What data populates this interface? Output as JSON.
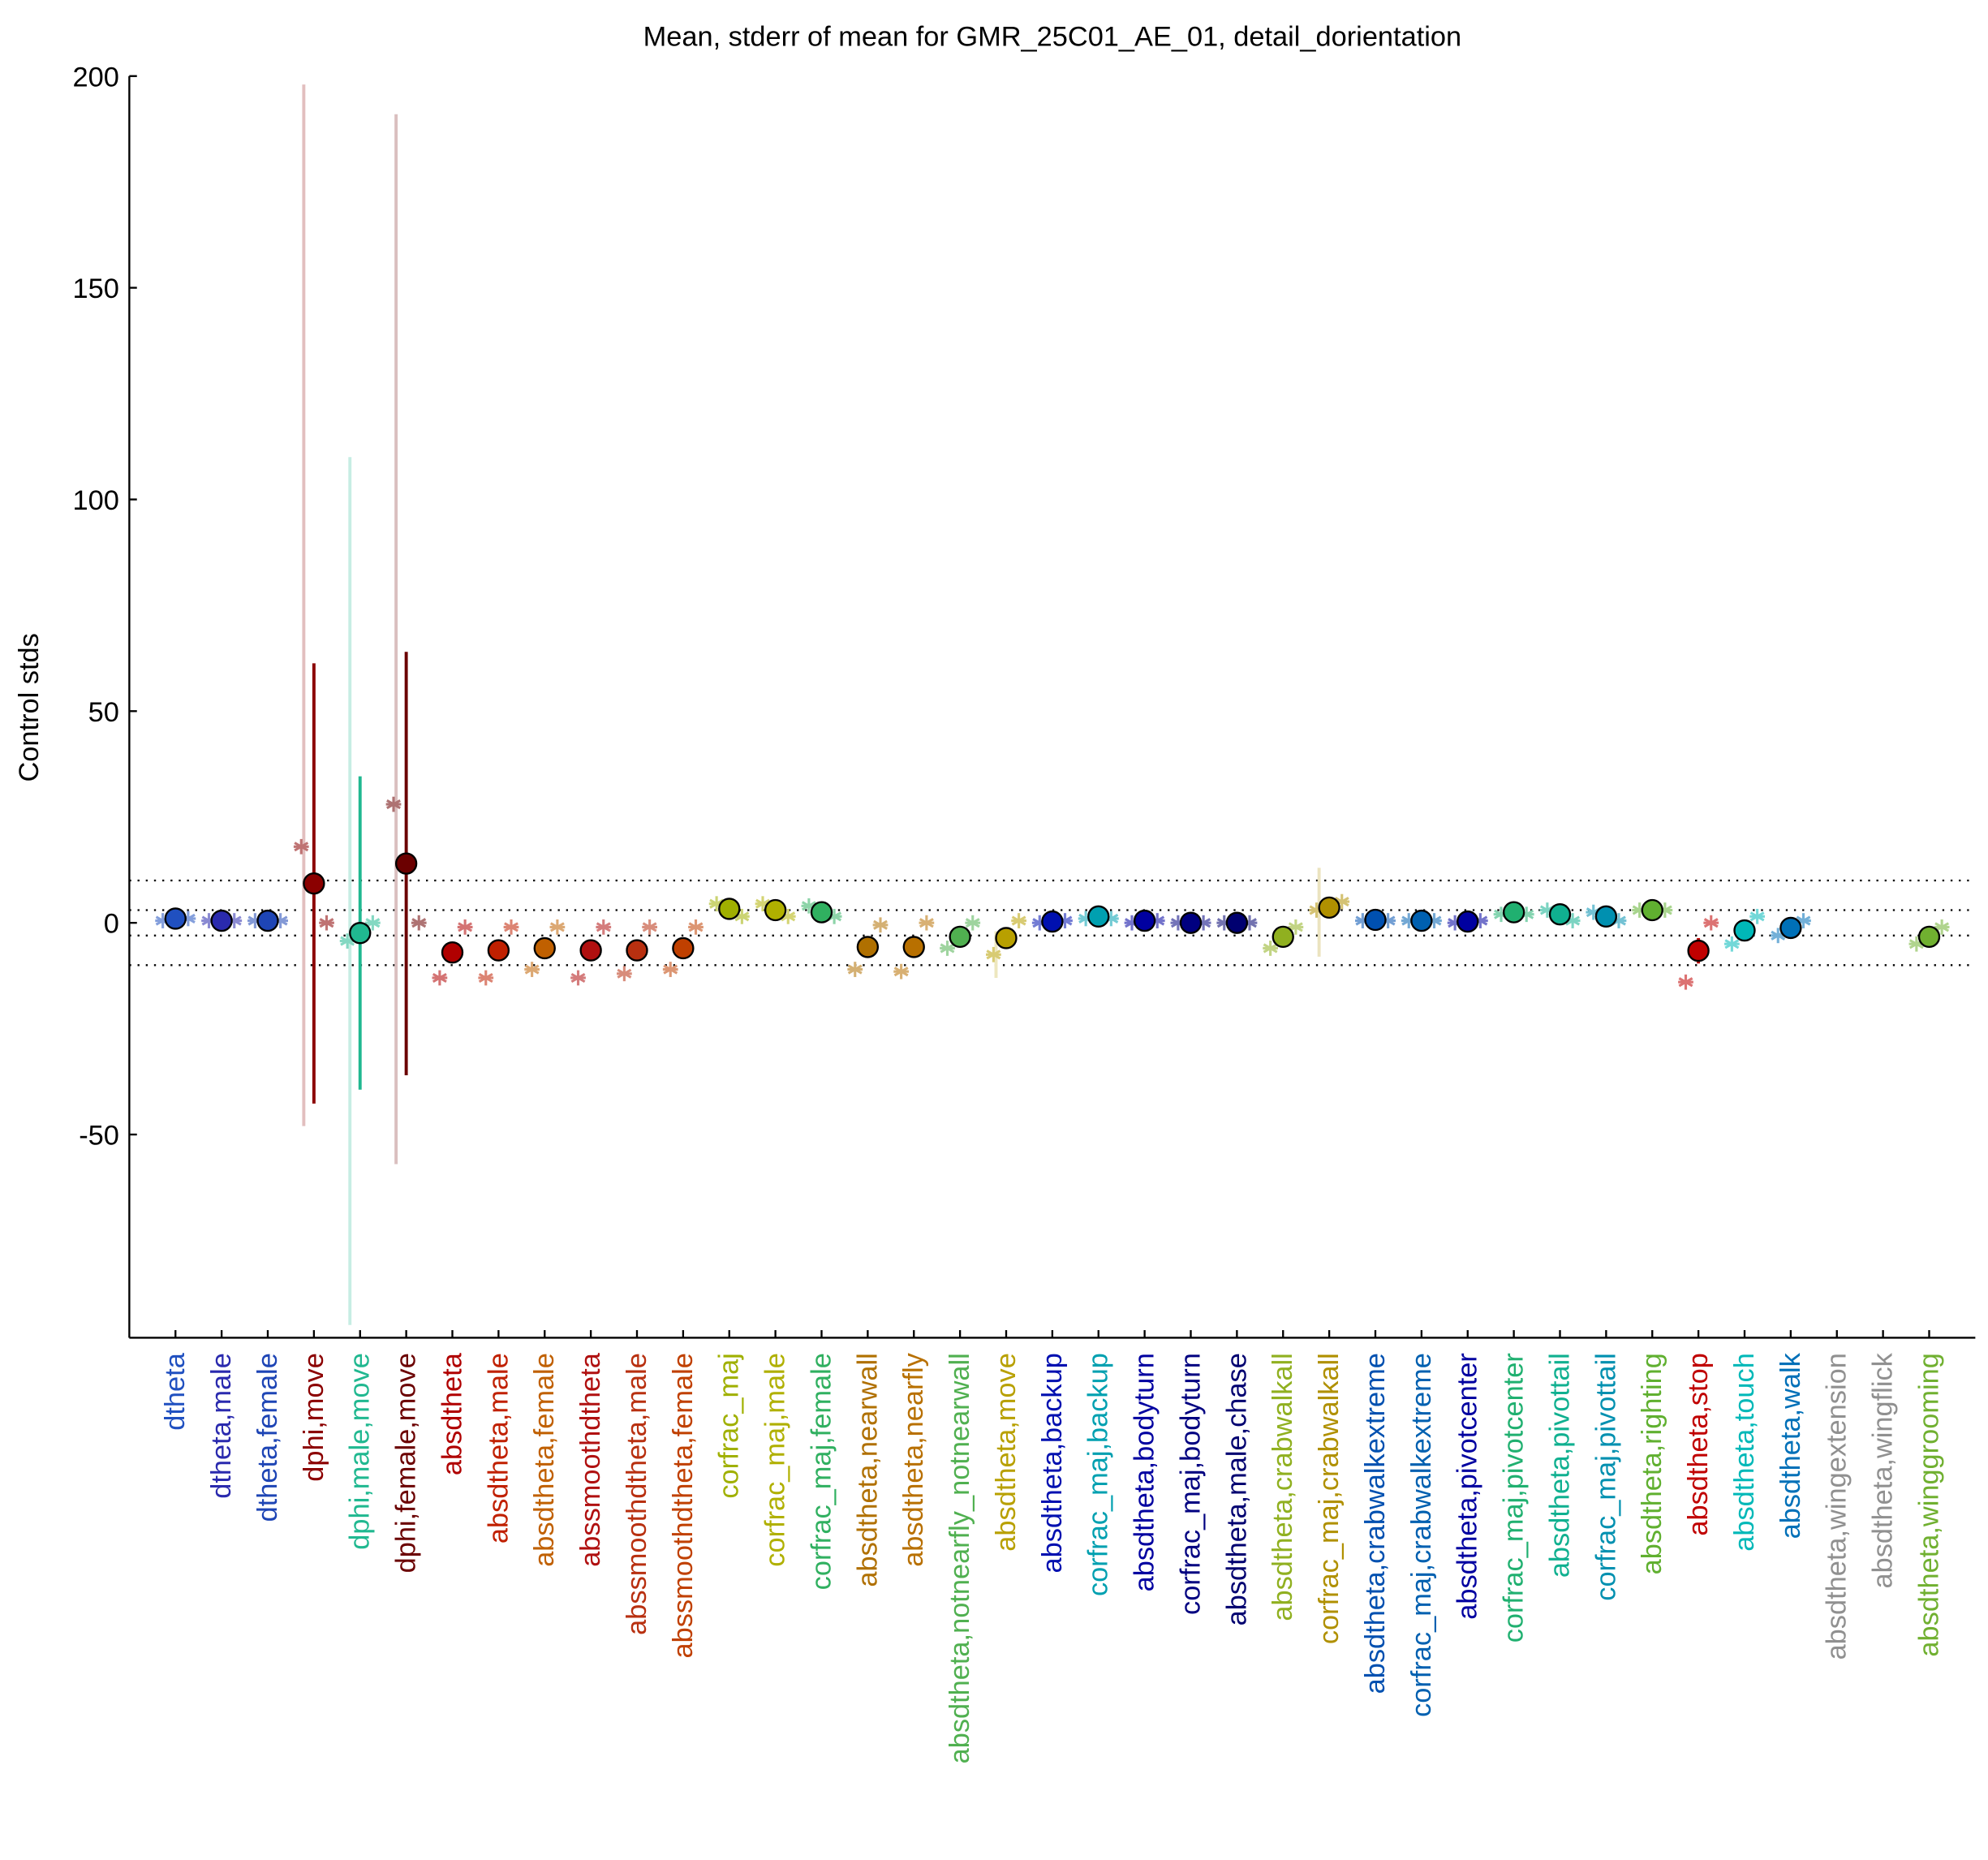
{
  "chart_data": {
    "type": "errorpoint",
    "title": "Mean, stderr of mean for GMR_25C01_AE_01, detail_dorientation",
    "ylabel": "Control stds",
    "categories": [
      "dtheta",
      "dtheta,male",
      "dtheta,female",
      "dphi,move",
      "dphi,male,move",
      "dphi,female,move",
      "absdtheta",
      "absdtheta,male",
      "absdtheta,female",
      "abssmoothdtheta",
      "abssmoothdtheta,male",
      "abssmoothdtheta,female",
      "corfrac_maj",
      "corfrac_maj,male",
      "corfrac_maj,female",
      "absdtheta,nearwall",
      "absdtheta,nearfly",
      "absdtheta,notnearfly_notnearwall",
      "absdtheta,move",
      "absdtheta,backup",
      "corfrac_maj,backup",
      "absdtheta,bodyturn",
      "corfrac_maj,bodyturn",
      "absdtheta,male,chase",
      "absdtheta,crabwalkall",
      "corfrac_maj,crabwalkall",
      "absdtheta,crabwalkextreme",
      "corfrac_maj,crabwalkextreme",
      "absdtheta,pivotcenter",
      "corfrac_maj,pivotcenter",
      "absdtheta,pivottail",
      "corfrac_maj,pivottail",
      "absdtheta,righting",
      "absdtheta,stop",
      "absdtheta,touch",
      "absdtheta,walk",
      "absdtheta,wingextension",
      "absdtheta,wingflick",
      "absdtheta,winggrooming"
    ],
    "colors": [
      "#2050c0",
      "#2a2aae",
      "#1e45b5",
      "#8b0000",
      "#20b890",
      "#6b0000",
      "#b00000",
      "#c02000",
      "#c06000",
      "#b01010",
      "#b83010",
      "#c04000",
      "#a0b000",
      "#b0b000",
      "#30b060",
      "#b07000",
      "#b87000",
      "#50b050",
      "#b8a000",
      "#0010b0",
      "#00a0b0",
      "#0000a0",
      "#000080",
      "#000070",
      "#90b020",
      "#b09000",
      "#0050b0",
      "#0060b0",
      "#0000a0",
      "#20b070",
      "#10b090",
      "#0090b0",
      "#60b030",
      "#c00000",
      "#00b8b8",
      "#0070b8",
      "#909090",
      "#909090",
      "#70b030"
    ],
    "values": [
      1,
      0.5,
      0.5,
      9.3,
      -2.4,
      14,
      -7,
      -6.5,
      -6,
      -6.5,
      -6.5,
      -6,
      3.3,
      3,
      2.5,
      -5.7,
      -5.7,
      -3.3,
      -3.6,
      0.3,
      1.5,
      0.5,
      0,
      0,
      -3.3,
      3.6,
      0.7,
      0.5,
      0.3,
      2.5,
      2,
      1.5,
      3,
      -6.6,
      -1.8,
      -1.2,
      null,
      null,
      -3.3
    ],
    "errors": [
      0.5,
      0.5,
      0.5,
      52,
      37,
      50,
      2,
      2,
      2,
      2,
      2,
      2,
      1,
      1,
      1,
      1.5,
      1.5,
      1,
      1,
      0.5,
      0.5,
      0.5,
      0.5,
      0.5,
      1,
      1.5,
      0.5,
      0.5,
      0.5,
      0.5,
      0.5,
      0.5,
      0.5,
      3,
      1,
      1,
      null,
      null,
      1
    ],
    "left_values": [
      0.5,
      0.5,
      0.5,
      18,
      -4.3,
      28,
      -13,
      -13,
      -11,
      -13,
      -12,
      -11,
      4.5,
      4.5,
      4,
      -11,
      -11.5,
      -6,
      -7.5,
      0,
      1,
      0,
      0,
      0,
      -6,
      3,
      0.5,
      0.5,
      0,
      2,
      3,
      2.5,
      3,
      -14,
      -5,
      -3,
      null,
      null,
      -5
    ],
    "right_values": [
      1,
      0.5,
      0.5,
      0,
      0,
      0,
      -1,
      -1,
      -1,
      -1,
      -1,
      -1,
      1.5,
      1.5,
      1.5,
      -0.5,
      0,
      0,
      0.5,
      0.5,
      1,
      0.5,
      0,
      0,
      -1,
      5,
      0.5,
      0.5,
      0.5,
      2,
      0.5,
      0.5,
      3,
      0,
      1.5,
      0.5,
      null,
      null,
      -1
    ],
    "left_ranges": [
      null,
      null,
      null,
      [
        -48,
        198
      ],
      [
        -95,
        110
      ],
      [
        -57,
        191
      ],
      null,
      null,
      null,
      null,
      null,
      null,
      null,
      null,
      null,
      null,
      null,
      null,
      [
        -13,
        -2
      ],
      null,
      null,
      null,
      null,
      null,
      null,
      [
        -8,
        13
      ],
      null,
      null,
      null,
      null,
      null,
      null,
      null,
      null,
      null,
      null,
      null,
      null,
      null
    ],
    "reference_lines": [
      -10,
      -3,
      3,
      10
    ],
    "ylim": [
      -98,
      200
    ],
    "yticks": [
      -50,
      0,
      50,
      100,
      150,
      200
    ]
  }
}
